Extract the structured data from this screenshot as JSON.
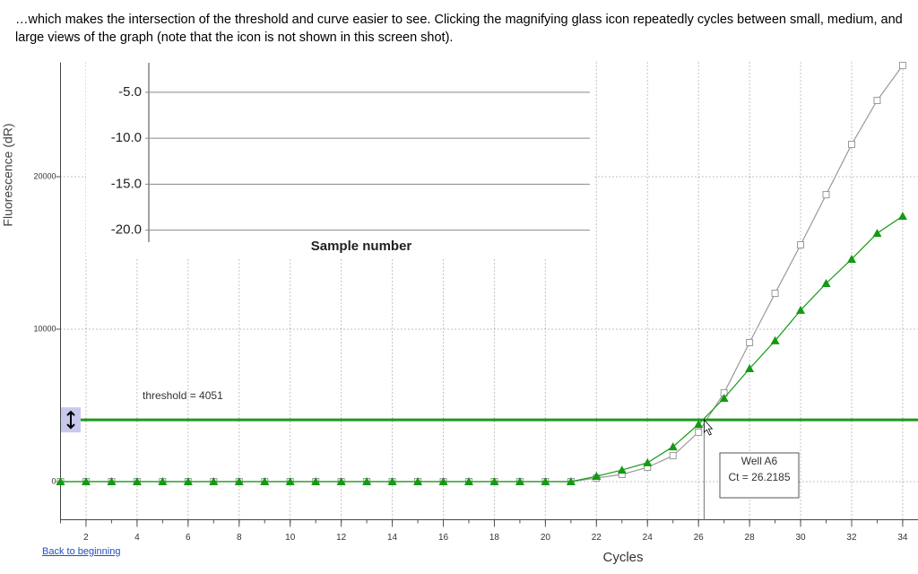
{
  "caption": "…which makes the intersection of the threshold and curve easier to see.  Clicking the magnifying glass icon repeatedly cycles between small, medium, and large views of the graph (note that the icon is not shown in this screen shot).",
  "link": "Back to beginning",
  "chart_data": [
    {
      "type": "line",
      "xlabel": "Cycles",
      "ylabel": "Fluorescence (dR)",
      "x": [
        1,
        2,
        3,
        4,
        5,
        6,
        7,
        8,
        9,
        10,
        11,
        12,
        13,
        14,
        15,
        16,
        17,
        18,
        19,
        20,
        21,
        22,
        23,
        24,
        25,
        26,
        27,
        28,
        29,
        30,
        31,
        32,
        33,
        34
      ],
      "series": [
        {
          "color": "#9a9a9a",
          "marker": "square",
          "values": [
            0,
            0,
            0,
            0,
            0,
            0,
            0,
            0,
            0,
            0,
            0,
            0,
            0,
            0,
            0,
            0,
            0,
            0,
            0,
            0,
            0,
            235,
            470,
            940,
            1700,
            3240,
            5820,
            9120,
            12350,
            15530,
            18820,
            22120,
            25000,
            27300
          ]
        },
        {
          "color": "#139a13",
          "marker": "triangle",
          "values": [
            0,
            0,
            0,
            0,
            0,
            0,
            0,
            0,
            0,
            0,
            0,
            0,
            0,
            0,
            0,
            0,
            0,
            0,
            0,
            0,
            0,
            350,
            760,
            1240,
            2290,
            3760,
            5470,
            7410,
            9240,
            11240,
            13000,
            14590,
            16290,
            17410
          ]
        }
      ],
      "xlim": [
        1,
        34.6
      ],
      "ylim": [
        -2500,
        27500
      ],
      "xticks": [
        2,
        4,
        6,
        8,
        10,
        12,
        14,
        16,
        18,
        20,
        22,
        24,
        26,
        28,
        30,
        32,
        34
      ],
      "yticks": [
        0,
        10000,
        20000
      ],
      "grid": true,
      "threshold": {
        "value": 4051,
        "label": "threshold = 4051",
        "color": "#1a9a1a"
      },
      "annotation": {
        "value": 26.2185,
        "title": "Well A6",
        "label": "Ct = 26.2185"
      }
    },
    {
      "type": "inset",
      "xlabel": "Sample number",
      "ylim": [
        -21.3,
        -1.8
      ],
      "yticks": [
        {
          "value": -5,
          "label": "-5.0"
        },
        {
          "value": -10,
          "label": "-10.0"
        },
        {
          "value": -15,
          "label": "-15.0"
        },
        {
          "value": -20,
          "label": "-20.0"
        }
      ]
    }
  ]
}
